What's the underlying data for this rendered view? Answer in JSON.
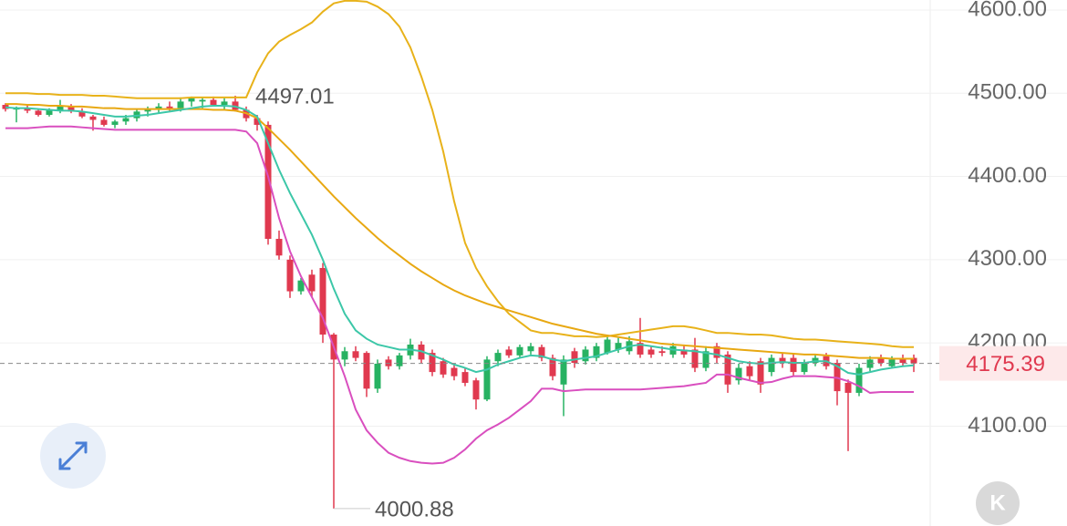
{
  "chart_data": {
    "type": "candlestick",
    "ylim": [
      3980,
      4612
    ],
    "yticks": [
      {
        "value": 4100,
        "label": "4100.00"
      },
      {
        "value": 4200,
        "label": "4200.00"
      },
      {
        "value": 4300,
        "label": "4300.00"
      },
      {
        "value": 4400,
        "label": "4400.00"
      },
      {
        "value": 4500,
        "label": "4500.00"
      },
      {
        "value": 4600,
        "label": "4600.00"
      }
    ],
    "grid": true,
    "up_color": "#27b262",
    "down_color": "#e0394f",
    "candles": {
      "open": [
        4486,
        4481,
        4482,
        4479,
        4474,
        4480,
        4484,
        4478,
        4472,
        4468,
        4462,
        4466,
        4470,
        4478,
        4480,
        4484,
        4482,
        4490,
        4490,
        4492,
        4486,
        4490,
        4480,
        4470,
        4462,
        4325,
        4300,
        4262,
        4282,
        4290,
        4210,
        4180,
        4190,
        4188,
        4145,
        4180,
        4172,
        4185,
        4198,
        4188,
        4178,
        4170,
        4165,
        4155,
        4132,
        4178,
        4192,
        4185,
        4190,
        4195,
        4182,
        4150,
        4190,
        4178,
        4182,
        4188,
        4192,
        4190,
        4200,
        4192,
        4190,
        4186,
        4192,
        4192,
        4170,
        4196,
        4186,
        4155,
        4172,
        4178,
        4165,
        4182,
        4182,
        4165,
        4176,
        4184,
        4176,
        4152,
        4140,
        4170,
        4182,
        4172,
        4182,
        4182
      ],
      "high": [
        4488,
        4484,
        4486,
        4481,
        4482,
        4492,
        4487,
        4482,
        4474,
        4472,
        4468,
        4474,
        4480,
        4484,
        4488,
        4490,
        4495,
        4496,
        4495,
        4496,
        4494,
        4497.01,
        4484,
        4474,
        4466,
        4335,
        4305,
        4278,
        4288,
        4296,
        4212,
        4195,
        4196,
        4190,
        4180,
        4184,
        4188,
        4205,
        4202,
        4192,
        4182,
        4174,
        4170,
        4158,
        4184,
        4192,
        4196,
        4198,
        4200,
        4198,
        4186,
        4185,
        4194,
        4196,
        4200,
        4210,
        4206,
        4208,
        4230,
        4196,
        4196,
        4200,
        4198,
        4206,
        4196,
        4200,
        4190,
        4175,
        4178,
        4182,
        4186,
        4188,
        4186,
        4180,
        4186,
        4188,
        4180,
        4156,
        4175,
        4184,
        4186,
        4184,
        4186,
        4186
      ],
      "low": [
        4478,
        4465,
        4476,
        4472,
        4472,
        4476,
        4476,
        4470,
        4455,
        4460,
        4458,
        4462,
        4466,
        4472,
        4476,
        4478,
        4478,
        4484,
        4482,
        4484,
        4480,
        4478,
        4466,
        4455,
        4318,
        4300,
        4254,
        4258,
        4255,
        4200,
        4000.88,
        4172,
        4178,
        4135,
        4140,
        4168,
        4168,
        4180,
        4175,
        4160,
        4158,
        4155,
        4148,
        4120,
        4130,
        4172,
        4182,
        4182,
        4186,
        4178,
        4155,
        4112,
        4170,
        4174,
        4178,
        4186,
        4188,
        4186,
        4182,
        4182,
        4184,
        4182,
        4182,
        4165,
        4166,
        4176,
        4140,
        4150,
        4155,
        4140,
        4160,
        4170,
        4160,
        4162,
        4172,
        4168,
        4125,
        4070,
        4136,
        4166,
        4172,
        4170,
        4172,
        4165
      ],
      "close": [
        4481,
        4482,
        4479,
        4474,
        4480,
        4484,
        4478,
        4472,
        4468,
        4462,
        4466,
        4470,
        4478,
        4480,
        4484,
        4482,
        4490,
        4494,
        4492,
        4486,
        4490,
        4480,
        4470,
        4462,
        4325,
        4305,
        4262,
        4275,
        4262,
        4210,
        4180,
        4190,
        4182,
        4145,
        4175,
        4172,
        4185,
        4198,
        4180,
        4165,
        4162,
        4160,
        4152,
        4132,
        4180,
        4188,
        4185,
        4195,
        4196,
        4182,
        4160,
        4180,
        4176,
        4192,
        4196,
        4204,
        4200,
        4202,
        4186,
        4186,
        4188,
        4196,
        4186,
        4170,
        4190,
        4182,
        4150,
        4170,
        4160,
        4150,
        4182,
        4176,
        4165,
        4176,
        4182,
        4172,
        4142,
        4140,
        4170,
        4180,
        4176,
        4180,
        4176,
        4175.39
      ]
    },
    "series": [
      {
        "color": "#e8b21a",
        "values": [
          4500,
          4500,
          4500,
          4499,
          4499,
          4498,
          4498,
          4498,
          4497,
          4497,
          4496,
          4495,
          4494,
          4494,
          4494,
          4494,
          4494,
          4495,
          4495,
          4495,
          4495,
          4495,
          4495,
          4525,
          4548,
          4562,
          4570,
          4577,
          4585,
          4598,
          4608,
          4611,
          4611,
          4610,
          4604,
          4595,
          4580,
          4555,
          4520,
          4480,
          4430,
          4370,
          4320,
          4290,
          4268,
          4250,
          4235,
          4225,
          4215,
          4212,
          4212,
          4210,
          4208,
          4208,
          4207,
          4208,
          4210,
          4212,
          4214,
          4216,
          4218,
          4220,
          4220,
          4218,
          4215,
          4212,
          4212,
          4211,
          4210,
          4210,
          4209,
          4207,
          4205,
          4204,
          4204,
          4203,
          4202,
          4201,
          4200,
          4199,
          4198,
          4196,
          4195,
          4195
        ]
      },
      {
        "color": "#e8a812",
        "values": [
          4487,
          4487,
          4486,
          4486,
          4485,
          4485,
          4484,
          4484,
          4483,
          4482,
          4482,
          4481,
          4481,
          4481,
          4481,
          4481,
          4481,
          4481,
          4481,
          4480,
          4480,
          4479,
          4476,
          4470,
          4458,
          4445,
          4432,
          4418,
          4404,
          4390,
          4376,
          4363,
          4350,
          4338,
          4326,
          4315,
          4305,
          4295,
          4286,
          4278,
          4270,
          4263,
          4257,
          4252,
          4247,
          4243,
          4239,
          4235,
          4231,
          4227,
          4223,
          4220,
          4217,
          4214,
          4211,
          4209,
          4207,
          4205,
          4203,
          4201,
          4199,
          4198,
          4197,
          4196,
          4195,
          4194,
          4193,
          4192,
          4191,
          4190,
          4189,
          4188,
          4187,
          4186,
          4186,
          4185,
          4184,
          4183,
          4182,
          4182,
          4182,
          4181,
          4181,
          4181
        ]
      },
      {
        "color": "#3cc7a8",
        "values": [
          4483,
          4482,
          4482,
          4481,
          4480,
          4479,
          4479,
          4478,
          4476,
          4474,
          4472,
          4472,
          4473,
          4474,
          4476,
          4478,
          4480,
          4482,
          4484,
          4485,
          4485,
          4484,
          4480,
          4472,
          4440,
          4408,
          4380,
          4355,
          4330,
          4300,
          4265,
          4235,
          4215,
          4205,
          4198,
          4195,
          4192,
          4192,
          4190,
          4185,
          4180,
          4174,
          4170,
          4165,
          4168,
          4174,
          4178,
          4182,
          4185,
          4184,
          4180,
          4178,
          4180,
          4182,
          4184,
          4188,
          4192,
          4196,
          4198,
          4196,
          4194,
          4192,
          4191,
          4190,
          4188,
          4186,
          4182,
          4178,
          4176,
          4175,
          4176,
          4177,
          4176,
          4176,
          4178,
          4178,
          4172,
          4164,
          4162,
          4165,
          4168,
          4170,
          4172,
          4173
        ]
      },
      {
        "color": "#d94fbf",
        "values": [
          4458,
          4458,
          4458,
          4459,
          4460,
          4460,
          4460,
          4459,
          4458,
          4457,
          4456,
          4456,
          4456,
          4456,
          4456,
          4456,
          4456,
          4456,
          4456,
          4456,
          4456,
          4456,
          4454,
          4440,
          4400,
          4350,
          4310,
          4280,
          4255,
          4230,
          4195,
          4160,
          4120,
          4095,
          4080,
          4068,
          4062,
          4058,
          4056,
          4055,
          4056,
          4062,
          4072,
          4085,
          4095,
          4102,
          4110,
          4120,
          4130,
          4145,
          4145,
          4142,
          4143,
          4144,
          4144,
          4144,
          4144,
          4144,
          4144,
          4145,
          4146,
          4147,
          4148,
          4150,
          4152,
          4162,
          4162,
          4158,
          4155,
          4152,
          4153,
          4157,
          4160,
          4160,
          4160,
          4159,
          4158,
          4154,
          4148,
          4140,
          4141,
          4141,
          4141,
          4141
        ]
      }
    ],
    "max_label": "4497.01",
    "min_label": "4000.88",
    "last_price_label": "4175.39",
    "kline_button": "K"
  }
}
